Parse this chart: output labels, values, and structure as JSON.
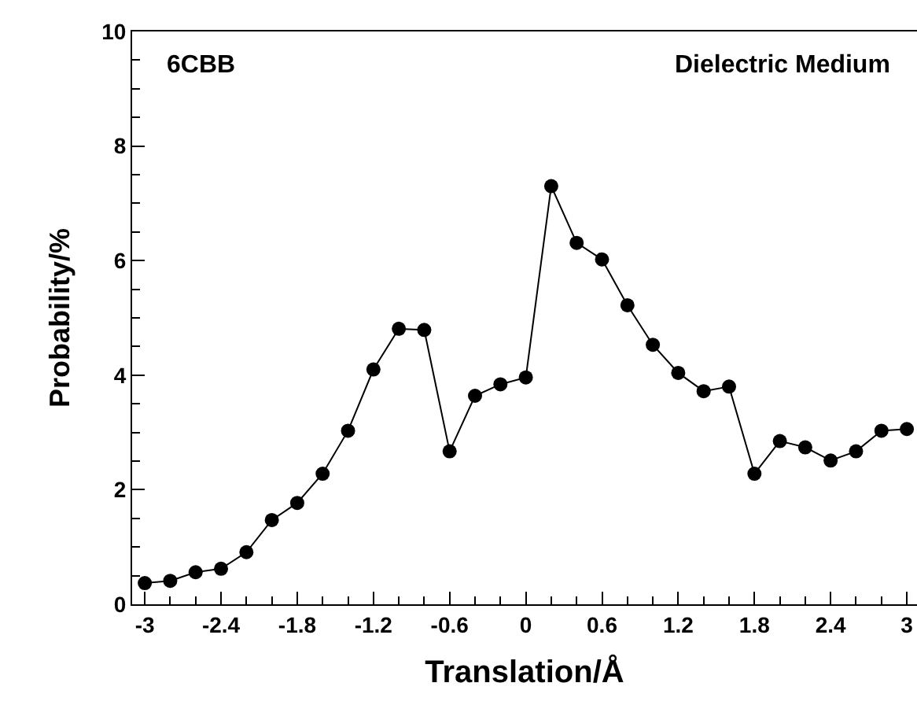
{
  "chart_data": {
    "type": "line",
    "xlabel": "Translation/Å",
    "ylabel": "Probability/%",
    "annotations": [
      "6CBB",
      "Dielectric Medium"
    ],
    "x": [
      -3,
      -2.8,
      -2.6,
      -2.4,
      -2.2,
      -2.0,
      -1.8,
      -1.6,
      -1.4,
      -1.2,
      -1.0,
      -0.8,
      -0.6,
      -0.4,
      -0.2,
      0,
      0.2,
      0.4,
      0.6,
      0.8,
      1.0,
      1.2,
      1.4,
      1.6,
      1.8,
      2.0,
      2.2,
      2.4,
      2.6,
      2.8,
      3.0
    ],
    "series": [
      {
        "color": "#000000",
        "values": [
          0.37,
          0.41,
          0.56,
          0.62,
          0.91,
          1.47,
          1.77,
          2.28,
          3.03,
          4.1,
          4.81,
          4.79,
          2.67,
          3.64,
          3.84,
          3.96,
          7.3,
          6.31,
          6.02,
          5.22,
          4.53,
          4.04,
          3.72,
          3.8,
          2.28,
          2.85,
          2.74,
          2.51,
          2.67,
          3.03,
          3.06
        ]
      }
    ],
    "xlim": [
      -3.1,
      3.08
    ],
    "xticks": [
      {
        "value": -3,
        "label": "-3"
      },
      -2.4,
      -1.8,
      -1.2,
      -0.6,
      0,
      0.6,
      1.2,
      1.8,
      2.4,
      3
    ],
    "ylim": [
      0,
      10
    ],
    "yticks": [
      0,
      2,
      4,
      6,
      8,
      10
    ],
    "marker": "circle",
    "line_style": "solid"
  }
}
